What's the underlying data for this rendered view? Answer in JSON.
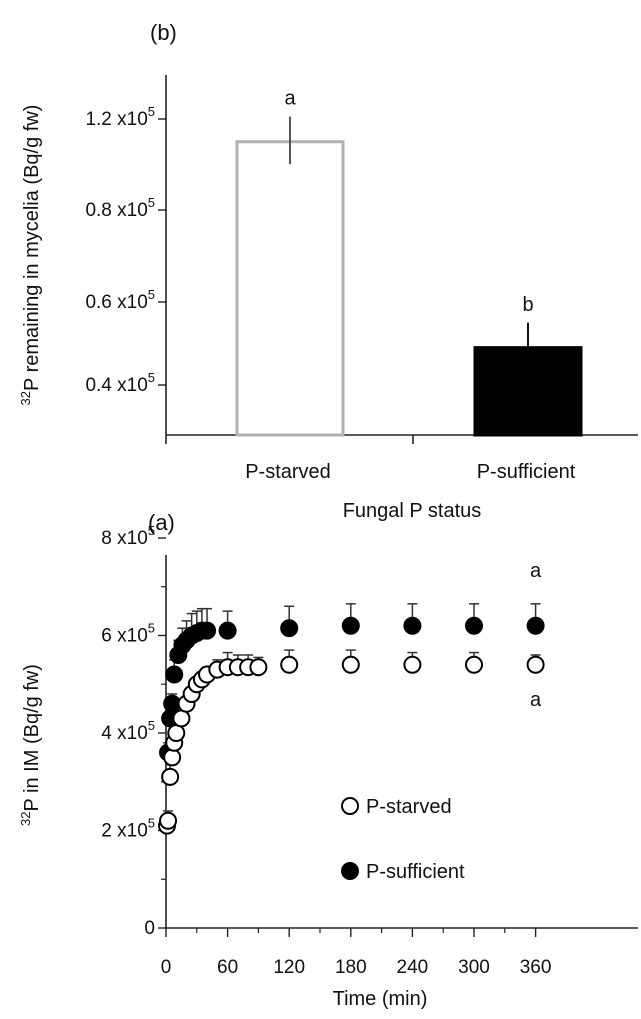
{
  "chart_data": [
    {
      "type": "bar",
      "panel_label": "(b)",
      "ylabel_prefix": "32",
      "ylabel": "P remaining in mycelia (Bq/g fw)",
      "xlabel": "Fungal P status",
      "categories": [
        "P-starved",
        "P-sufficient"
      ],
      "values": [
        1.1,
        0.49
      ],
      "errors": [
        0.11,
        0.06
      ],
      "letters": [
        "a",
        "b"
      ],
      "bar_fills": [
        "#ffffff",
        "#000000"
      ],
      "bar_strokes": [
        "#b0b0b0",
        "#000000"
      ],
      "yticks": [
        {
          "v": 1.2,
          "mant": "1.2 x10",
          "exp": "5"
        },
        {
          "v": 0.8,
          "mant": "0.8 x10",
          "exp": "5"
        },
        {
          "v": 0.6,
          "mant": "0.6 x10",
          "exp": "5"
        },
        {
          "v": 0.4,
          "mant": "0.4 x10",
          "exp": "5"
        }
      ],
      "ylim": [
        0.3,
        1.35
      ],
      "grid": false
    },
    {
      "type": "scatter",
      "panel_label": "(a)",
      "ylabel_prefix": "32",
      "ylabel": "P in IM (Bq/g fw)",
      "xlabel": "Time (min)",
      "xlim": [
        0,
        375
      ],
      "ylim": [
        0,
        8
      ],
      "xticks": [
        0,
        60,
        120,
        180,
        240,
        300,
        360
      ],
      "yticks": [
        {
          "v": 8,
          "mant": "8 x10",
          "exp": "5"
        },
        {
          "v": 6,
          "mant": "6 x10",
          "exp": "5"
        },
        {
          "v": 4,
          "mant": "4 x10",
          "exp": "5"
        },
        {
          "v": 2,
          "mant": "2 x10",
          "exp": "5"
        },
        {
          "v": 0,
          "mant": "0",
          "exp": ""
        }
      ],
      "series": [
        {
          "name": "P-starved",
          "marker": "open-circle",
          "x": [
            1,
            2,
            4,
            6,
            8,
            10,
            15,
            20,
            25,
            30,
            35,
            40,
            50,
            60,
            70,
            80,
            90,
            120,
            180,
            240,
            300,
            360
          ],
          "y": [
            2.1,
            2.2,
            3.1,
            3.5,
            3.8,
            4.0,
            4.3,
            4.6,
            4.8,
            5.0,
            5.1,
            5.2,
            5.3,
            5.35,
            5.35,
            5.35,
            5.35,
            5.4,
            5.4,
            5.4,
            5.4,
            5.4
          ],
          "err": [
            0.2,
            0.2,
            0.25,
            0.2,
            0.2,
            0.15,
            0.15,
            0.15,
            0.15,
            0.15,
            0.15,
            0.15,
            0.2,
            0.3,
            0.25,
            0.25,
            0.2,
            0.3,
            0.3,
            0.25,
            0.25,
            0.2
          ]
        },
        {
          "name": "P-sufficient",
          "marker": "filled-circle",
          "x": [
            2,
            4,
            6,
            8,
            12,
            16,
            20,
            25,
            30,
            35,
            40,
            60,
            120,
            180,
            240,
            300,
            360
          ],
          "y": [
            3.6,
            4.3,
            4.6,
            5.2,
            5.6,
            5.8,
            5.9,
            6.0,
            6.05,
            6.1,
            6.1,
            6.1,
            6.15,
            6.2,
            6.2,
            6.2,
            6.2
          ],
          "err": [
            0.2,
            0.2,
            0.2,
            0.3,
            0.3,
            0.35,
            0.4,
            0.45,
            0.45,
            0.45,
            0.45,
            0.4,
            0.45,
            0.45,
            0.45,
            0.45,
            0.45
          ]
        }
      ],
      "letters": [
        {
          "text": "a",
          "series": "P-sufficient"
        },
        {
          "text": "a",
          "series": "P-starved"
        }
      ],
      "legend_position": "lower-center",
      "grid": false
    }
  ]
}
